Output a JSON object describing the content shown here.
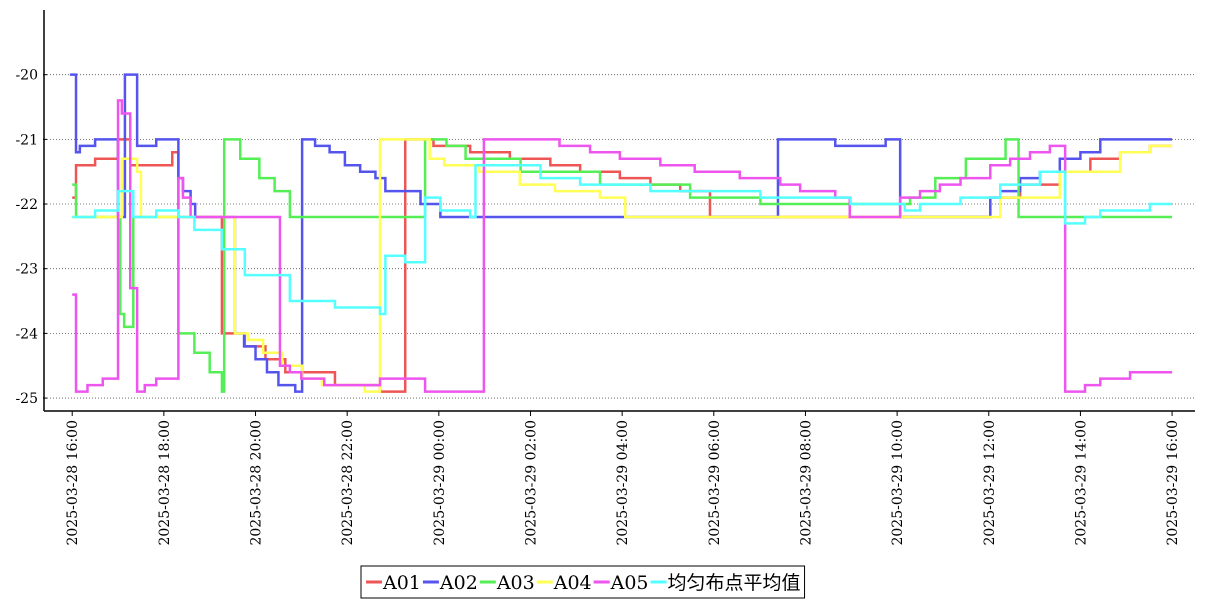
{
  "chart_data": {
    "type": "line",
    "step": "post",
    "xlim": [
      "2025-03-28 15:27",
      "2025-03-29 16:30"
    ],
    "xticks": [
      "2025-03-28 16:00",
      "2025-03-28 18:00",
      "2025-03-28 20:00",
      "2025-03-28 22:00",
      "2025-03-29 00:00",
      "2025-03-29 02:00",
      "2025-03-29 04:00",
      "2025-03-29 06:00",
      "2025-03-29 08:00",
      "2025-03-29 10:00",
      "2025-03-29 12:00",
      "2025-03-29 14:00",
      "2025-03-29 16:00"
    ],
    "ylim": [
      -25.2,
      -19
    ],
    "yticks": [
      -25,
      -24,
      -23,
      -22,
      -21,
      -20
    ],
    "grid": true,
    "legend": "bottom",
    "series": [
      {
        "name": "A01",
        "color": "#ee5555",
        "x": [
          "2025-03-28 16:00",
          "2025-03-28 16:05",
          "2025-03-28 16:30",
          "2025-03-28 17:00",
          "2025-03-28 17:16",
          "2025-03-28 18:11",
          "2025-03-28 18:19",
          "2025-03-28 19:16",
          "2025-03-28 19:46",
          "2025-03-28 20:13",
          "2025-03-28 20:39",
          "2025-03-28 21:44",
          "2025-03-28 22:43",
          "2025-03-28 23:16",
          "2025-03-28 23:53",
          "2025-03-29 00:41",
          "2025-03-29 01:33",
          "2025-03-29 02:26",
          "2025-03-29 03:05",
          "2025-03-29 03:57",
          "2025-03-29 04:37",
          "2025-03-29 05:16",
          "2025-03-29 05:55",
          "2025-03-29 12:02",
          "2025-03-29 12:41",
          "2025-03-29 13:33",
          "2025-03-29 14:13",
          "2025-03-29 14:52",
          "2025-03-29 15:31",
          "2025-03-29 16:00"
        ],
        "values": [
          -21.9,
          -21.4,
          -21.3,
          -21.0,
          -21.4,
          -21.2,
          -22.2,
          -24.0,
          -24.2,
          -24.4,
          -24.6,
          -24.8,
          -24.9,
          -21.0,
          -21.1,
          -21.2,
          -21.3,
          -21.4,
          -21.5,
          -21.6,
          -21.7,
          -21.8,
          -22.2,
          -21.9,
          -21.7,
          -21.5,
          -21.3,
          -21.2,
          -21.1,
          -21.1
        ]
      },
      {
        "name": "A02",
        "color": "#5555ee",
        "x": [
          "2025-03-28 15:57",
          "2025-03-28 16:05",
          "2025-03-28 16:10",
          "2025-03-28 16:30",
          "2025-03-28 17:00",
          "2025-03-28 17:09",
          "2025-03-28 17:25",
          "2025-03-28 17:50",
          "2025-03-28 18:19",
          "2025-03-28 18:25",
          "2025-03-28 18:35",
          "2025-03-28 18:41",
          "2025-03-28 19:33",
          "2025-03-28 19:45",
          "2025-03-28 20:00",
          "2025-03-28 20:15",
          "2025-03-28 20:30",
          "2025-03-28 20:52",
          "2025-03-28 21:01",
          "2025-03-28 21:18",
          "2025-03-28 21:37",
          "2025-03-28 21:57",
          "2025-03-28 22:17",
          "2025-03-28 22:37",
          "2025-03-28 22:50",
          "2025-03-28 23:36",
          "2025-03-29 00:02",
          "2025-03-29 07:24",
          "2025-03-29 08:39",
          "2025-03-29 09:45",
          "2025-03-29 10:04",
          "2025-03-29 12:02",
          "2025-03-29 12:15",
          "2025-03-29 12:41",
          "2025-03-29 13:07",
          "2025-03-29 13:33",
          "2025-03-29 14:00",
          "2025-03-29 14:26",
          "2025-03-29 16:00"
        ],
        "values": [
          -20.0,
          -21.2,
          -21.1,
          -21.0,
          -22.2,
          -20.0,
          -21.1,
          -21.0,
          -21.6,
          -21.8,
          -22.0,
          -22.2,
          -24.0,
          -24.2,
          -24.4,
          -24.6,
          -24.8,
          -24.9,
          -21.0,
          -21.1,
          -21.2,
          -21.4,
          -21.5,
          -21.6,
          -21.8,
          -22.0,
          -22.2,
          -21.0,
          -21.1,
          -21.0,
          -22.2,
          -21.9,
          -21.8,
          -21.6,
          -21.5,
          -21.3,
          -21.2,
          -21.0,
          -21.0
        ]
      },
      {
        "name": "A03",
        "color": "#55ee55",
        "x": [
          "2025-03-28 16:00",
          "2025-03-28 16:05",
          "2025-03-28 17:03",
          "2025-03-28 17:08",
          "2025-03-28 17:20",
          "2025-03-28 18:19",
          "2025-03-28 18:40",
          "2025-03-28 19:00",
          "2025-03-28 19:16",
          "2025-03-28 19:19",
          "2025-03-28 19:40",
          "2025-03-28 20:05",
          "2025-03-28 20:25",
          "2025-03-28 20:45",
          "2025-03-28 23:36",
          "2025-03-28 23:42",
          "2025-03-29 00:10",
          "2025-03-29 00:35",
          "2025-03-29 01:47",
          "2025-03-29 03:31",
          "2025-03-29 05:29",
          "2025-03-29 07:01",
          "2025-03-29 10:17",
          "2025-03-29 10:50",
          "2025-03-29 11:30",
          "2025-03-29 12:22",
          "2025-03-29 12:39",
          "2025-03-29 16:00"
        ],
        "values": [
          -21.7,
          -22.2,
          -23.7,
          -23.9,
          -22.2,
          -24.0,
          -24.3,
          -24.6,
          -24.9,
          -21.0,
          -21.3,
          -21.6,
          -21.8,
          -22.2,
          -22.2,
          -21.0,
          -21.1,
          -21.3,
          -21.5,
          -21.7,
          -21.9,
          -22.0,
          -21.9,
          -21.6,
          -21.3,
          -21.0,
          -22.2,
          -22.2
        ]
      },
      {
        "name": "A04",
        "color": "#ffff55",
        "x": [
          "2025-03-28 16:00",
          "2025-03-28 17:05",
          "2025-03-28 17:25",
          "2025-03-28 17:30",
          "2025-03-28 19:33",
          "2025-03-28 19:50",
          "2025-03-28 20:10",
          "2025-03-28 20:35",
          "2025-03-28 21:01",
          "2025-03-28 21:27",
          "2025-03-28 22:23",
          "2025-03-28 22:43",
          "2025-03-28 23:48",
          "2025-03-29 00:07",
          "2025-03-29 00:53",
          "2025-03-29 01:46",
          "2025-03-29 02:32",
          "2025-03-29 03:31",
          "2025-03-29 04:04",
          "2025-03-29 04:56",
          "2025-03-29 12:15",
          "2025-03-29 13:33",
          "2025-03-29 14:52",
          "2025-03-29 15:31",
          "2025-03-29 16:00"
        ],
        "values": [
          -22.2,
          -21.3,
          -21.5,
          -22.2,
          -24.0,
          -24.1,
          -24.3,
          -24.5,
          -24.7,
          -24.8,
          -24.9,
          -21.0,
          -21.3,
          -21.4,
          -21.5,
          -21.7,
          -21.8,
          -21.9,
          -22.2,
          -22.2,
          -21.9,
          -21.5,
          -21.2,
          -21.1,
          -21.1
        ]
      },
      {
        "name": "A05",
        "color": "#ee55ee",
        "x": [
          "2025-03-28 16:00",
          "2025-03-28 16:05",
          "2025-03-28 16:20",
          "2025-03-28 16:40",
          "2025-03-28 17:00",
          "2025-03-28 17:05",
          "2025-03-28 17:16",
          "2025-03-28 17:25",
          "2025-03-28 17:35",
          "2025-03-28 17:50",
          "2025-03-28 18:19",
          "2025-03-28 18:25",
          "2025-03-28 18:35",
          "2025-03-28 20:32",
          "2025-03-28 20:45",
          "2025-03-28 21:00",
          "2025-03-28 21:30",
          "2025-03-28 22:43",
          "2025-03-28 23:42",
          "2025-03-29 00:59",
          "2025-03-29 02:38",
          "2025-03-29 03:18",
          "2025-03-29 03:57",
          "2025-03-29 04:50",
          "2025-03-29 05:35",
          "2025-03-29 06:34",
          "2025-03-29 07:27",
          "2025-03-29 07:53",
          "2025-03-29 08:39",
          "2025-03-29 08:58",
          "2025-03-29 10:04",
          "2025-03-29 10:30",
          "2025-03-29 10:56",
          "2025-03-29 11:23",
          "2025-03-29 12:02",
          "2025-03-29 12:28",
          "2025-03-29 12:54",
          "2025-03-29 13:20",
          "2025-03-29 13:40",
          "2025-03-29 14:06",
          "2025-03-29 14:26",
          "2025-03-29 15:05",
          "2025-03-29 16:00"
        ],
        "values": [
          -23.4,
          -24.9,
          -24.8,
          -24.7,
          -20.4,
          -20.6,
          -23.3,
          -24.9,
          -24.8,
          -24.7,
          -21.6,
          -21.9,
          -22.2,
          -24.5,
          -24.6,
          -24.7,
          -24.8,
          -24.7,
          -24.9,
          -21.0,
          -21.1,
          -21.2,
          -21.3,
          -21.4,
          -21.5,
          -21.6,
          -21.7,
          -21.8,
          -21.9,
          -22.2,
          -21.9,
          -21.8,
          -21.7,
          -21.6,
          -21.4,
          -21.3,
          -21.2,
          -21.1,
          -24.9,
          -24.8,
          -24.7,
          -24.6,
          -24.6
        ]
      },
      {
        "name": "均匀布点平均值",
        "color": "#55ffff",
        "x": [
          "2025-03-28 16:00",
          "2025-03-28 16:30",
          "2025-03-28 17:00",
          "2025-03-28 17:20",
          "2025-03-28 17:50",
          "2025-03-28 18:19",
          "2025-03-28 18:40",
          "2025-03-28 19:16",
          "2025-03-28 19:46",
          "2025-03-28 20:45",
          "2025-03-28 21:44",
          "2025-03-28 22:43",
          "2025-03-28 22:50",
          "2025-03-28 23:16",
          "2025-03-28 23:42",
          "2025-03-29 00:02",
          "2025-03-29 00:41",
          "2025-03-29 00:48",
          "2025-03-29 02:13",
          "2025-03-29 03:05",
          "2025-03-29 04:37",
          "2025-03-29 07:01",
          "2025-03-29 08:59",
          "2025-03-29 10:10",
          "2025-03-29 10:30",
          "2025-03-29 11:23",
          "2025-03-29 12:15",
          "2025-03-29 13:07",
          "2025-03-29 13:40",
          "2025-03-29 14:06",
          "2025-03-29 14:26",
          "2025-03-29 15:31",
          "2025-03-29 16:00"
        ],
        "values": [
          -22.2,
          -22.1,
          -21.8,
          -22.2,
          -22.1,
          -22.2,
          -22.4,
          -22.7,
          -23.1,
          -23.5,
          -23.6,
          -23.7,
          -22.8,
          -22.9,
          -21.9,
          -22.1,
          -22.2,
          -21.4,
          -21.6,
          -21.7,
          -21.8,
          -21.9,
          -22.0,
          -22.1,
          -22.0,
          -21.9,
          -21.7,
          -21.5,
          -22.3,
          -22.2,
          -22.1,
          -22.0,
          -22.0
        ]
      }
    ]
  }
}
